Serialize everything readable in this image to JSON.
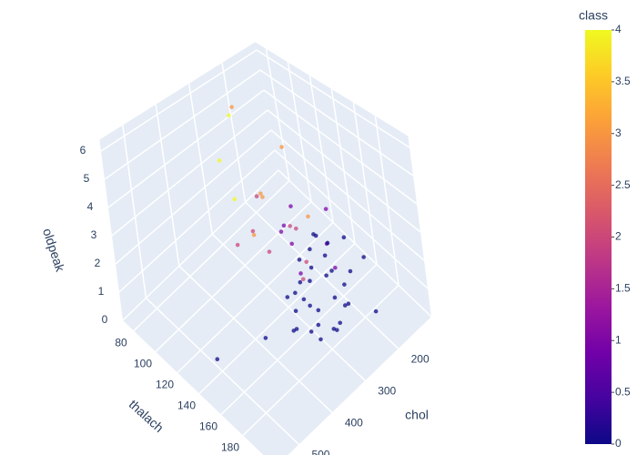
{
  "chart_data": {
    "type": "scatter3d",
    "xaxis_title": "chol",
    "yaxis_title": "thalach",
    "zaxis_title": "oldpeak",
    "xlim": [
      100,
      570
    ],
    "ylim": [
      70,
      210
    ],
    "zlim": [
      0,
      6.4
    ],
    "xticks": [
      200,
      300,
      400,
      500
    ],
    "yticks": [
      80,
      100,
      120,
      140,
      160,
      180
    ],
    "zticks": [
      0,
      1,
      2,
      3,
      4,
      5,
      6
    ],
    "grid": true,
    "colorbar": {
      "title": "class",
      "lim": [
        0,
        4
      ],
      "ticks": [
        0,
        0.5,
        1,
        1.5,
        2,
        2.5,
        3,
        3.5,
        4
      ]
    },
    "colorscale": [
      "#0d0887",
      "#46039f",
      "#7201a8",
      "#9c179e",
      "#bd3786",
      "#d8576b",
      "#ed7953",
      "#fb9f3a",
      "#fdca26",
      "#f0f921"
    ],
    "x": [
      233,
      286,
      229,
      250,
      204,
      236,
      268,
      354,
      254,
      203,
      192,
      294,
      256,
      263,
      199,
      168,
      239,
      275,
      266,
      211,
      283,
      219,
      340,
      226,
      247,
      234,
      243,
      302,
      212,
      175,
      417,
      197,
      198,
      177,
      219,
      273,
      213,
      305,
      216,
      304,
      188,
      282,
      185,
      326,
      274,
      164,
      407,
      309,
      258,
      295,
      270,
      289,
      322,
      318,
      564,
      353,
      225,
      230,
      241,
      260
    ],
    "y": [
      150,
      108,
      129,
      187,
      172,
      178,
      160,
      163,
      147,
      155,
      148,
      153,
      142,
      173,
      162,
      174,
      160,
      139,
      171,
      144,
      162,
      158,
      172,
      114,
      171,
      140,
      105,
      170,
      165,
      182,
      157,
      154,
      150,
      122,
      115,
      152,
      125,
      142,
      125,
      162,
      113,
      103,
      144,
      109,
      96,
      132,
      154,
      131,
      141,
      145,
      111,
      124,
      154,
      96,
      160,
      116,
      140,
      125,
      130,
      155
    ],
    "z": [
      2.3,
      1.5,
      2.6,
      3.5,
      1.4,
      0.8,
      3.6,
      0.6,
      1.4,
      3.1,
      0.4,
      1.3,
      0.6,
      0,
      0.5,
      1.6,
      1.2,
      0.2,
      0,
      1.8,
      0,
      0.1,
      1.8,
      1.0,
      0,
      0.2,
      2.4,
      0,
      0,
      0,
      0.8,
      0.8,
      1.6,
      0,
      1.2,
      0.2,
      1.4,
      0.5,
      0.2,
      0,
      4.0,
      6.2,
      1.2,
      3.2,
      5.6,
      0,
      4.0,
      1.8,
      0.8,
      0,
      2.8,
      3.4,
      0,
      4.2,
      1.6,
      2.0,
      0.6,
      1.0,
      2.0,
      0
    ],
    "class": [
      0,
      2,
      1,
      0,
      0,
      0,
      3,
      0,
      2,
      1,
      0,
      0,
      2,
      0,
      0,
      0,
      0,
      0,
      0,
      0,
      0,
      0,
      0,
      1,
      0,
      0,
      3,
      0,
      0,
      0,
      0,
      1,
      0,
      0,
      1,
      0,
      2,
      0,
      0,
      0,
      3,
      3,
      1,
      4,
      4,
      0,
      3,
      2,
      1,
      0,
      2,
      3,
      0,
      4,
      0,
      2,
      0,
      1,
      2,
      0
    ]
  }
}
